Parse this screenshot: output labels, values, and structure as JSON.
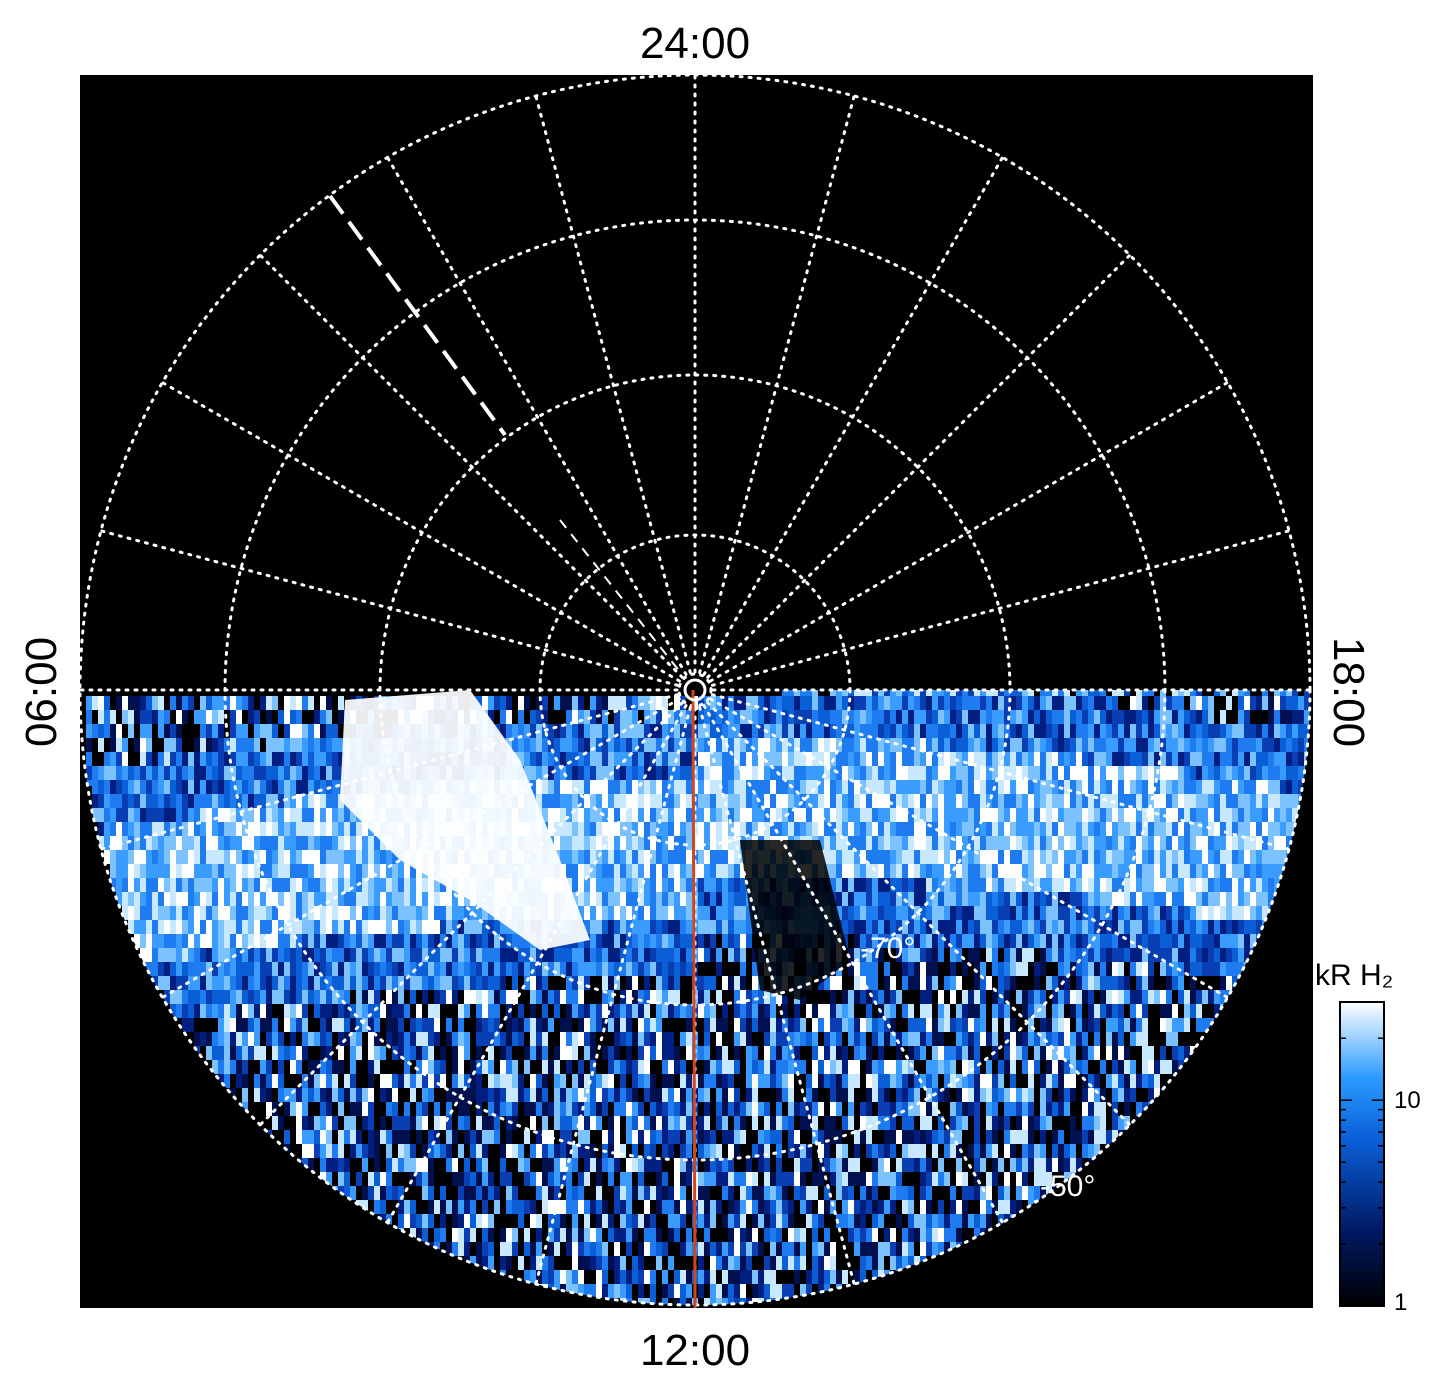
{
  "figure": {
    "local_time_labels": {
      "top": "24:00",
      "bottom": "12:00",
      "left": "06:00",
      "right": "18:00"
    },
    "latitude_labels": [
      "-70°",
      "-50°"
    ],
    "colorbar": {
      "title": "kR H₂",
      "ticks": [
        "10",
        "1"
      ],
      "scale": "log",
      "range": [
        1,
        30
      ]
    },
    "colors": {
      "background": "#000000",
      "grid": "#ffffff",
      "meridian_line": "#d2461e",
      "aurora_dark": "#001060",
      "aurora_mid": "#1e6fe6",
      "aurora_light": "#bfe4ff"
    }
  }
}
